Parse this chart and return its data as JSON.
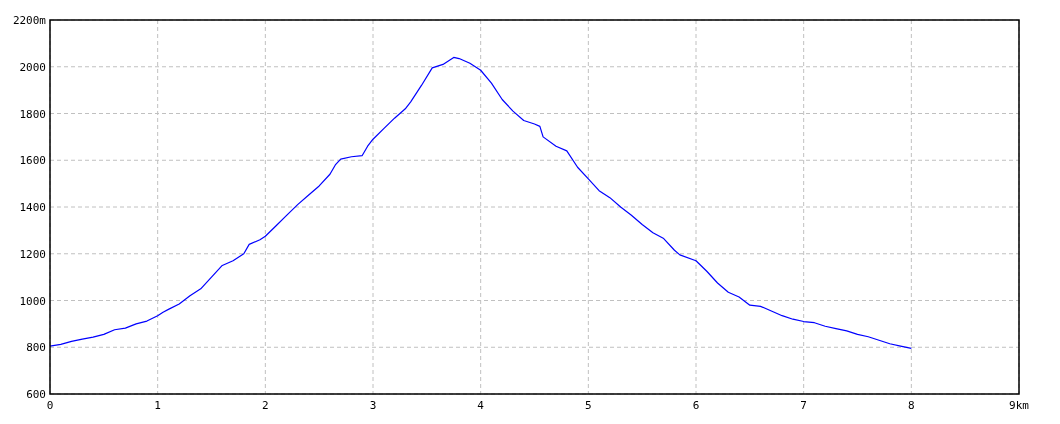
{
  "chart_data": {
    "type": "line",
    "x": [
      0,
      0.1,
      0.2,
      0.3,
      0.4,
      0.5,
      0.6,
      0.7,
      0.8,
      0.9,
      1.0,
      1.05,
      1.1,
      1.2,
      1.3,
      1.4,
      1.5,
      1.6,
      1.7,
      1.8,
      1.85,
      1.95,
      2.0,
      2.1,
      2.2,
      2.3,
      2.4,
      2.5,
      2.6,
      2.65,
      2.7,
      2.8,
      2.9,
      2.95,
      3.0,
      3.1,
      3.2,
      3.3,
      3.35,
      3.45,
      3.55,
      3.65,
      3.75,
      3.8,
      3.9,
      4.0,
      4.1,
      4.2,
      4.3,
      4.4,
      4.5,
      4.55,
      4.58,
      4.7,
      4.8,
      4.9,
      5.0,
      5.1,
      5.2,
      5.3,
      5.4,
      5.5,
      5.6,
      5.7,
      5.8,
      5.85,
      6.0,
      6.1,
      6.2,
      6.3,
      6.4,
      6.5,
      6.6,
      6.7,
      6.8,
      6.9,
      7.0,
      7.1,
      7.2,
      7.3,
      7.4,
      7.5,
      7.6,
      7.7,
      7.8,
      7.9,
      8.0
    ],
    "series": [
      {
        "color": "#0000ff",
        "values": [
          805,
          812,
          825,
          835,
          843,
          855,
          875,
          882,
          900,
          912,
          935,
          950,
          962,
          985,
          1020,
          1050,
          1100,
          1150,
          1170,
          1200,
          1240,
          1260,
          1275,
          1320,
          1365,
          1410,
          1450,
          1490,
          1540,
          1580,
          1605,
          1615,
          1620,
          1660,
          1690,
          1735,
          1780,
          1820,
          1850,
          1920,
          1995,
          2010,
          2040,
          2035,
          2015,
          1985,
          1930,
          1860,
          1810,
          1770,
          1755,
          1745,
          1700,
          1660,
          1640,
          1570,
          1520,
          1470,
          1440,
          1400,
          1365,
          1325,
          1290,
          1265,
          1215,
          1195,
          1170,
          1125,
          1075,
          1035,
          1015,
          980,
          975,
          955,
          935,
          920,
          910,
          905,
          890,
          880,
          870,
          855,
          845,
          830,
          815,
          805,
          795
        ]
      }
    ],
    "xlim": [
      0,
      9
    ],
    "xticks": [
      0,
      1,
      2,
      3,
      4,
      5,
      6,
      7,
      8,
      {
        "value": 9,
        "label": "9km"
      }
    ],
    "ylim": [
      600,
      2200
    ],
    "yticks": [
      600,
      800,
      1000,
      1200,
      1400,
      1600,
      1800,
      2000,
      {
        "value": 2200,
        "label": "2200m"
      }
    ],
    "grid": true,
    "line_style": "solid",
    "marker": "none"
  }
}
